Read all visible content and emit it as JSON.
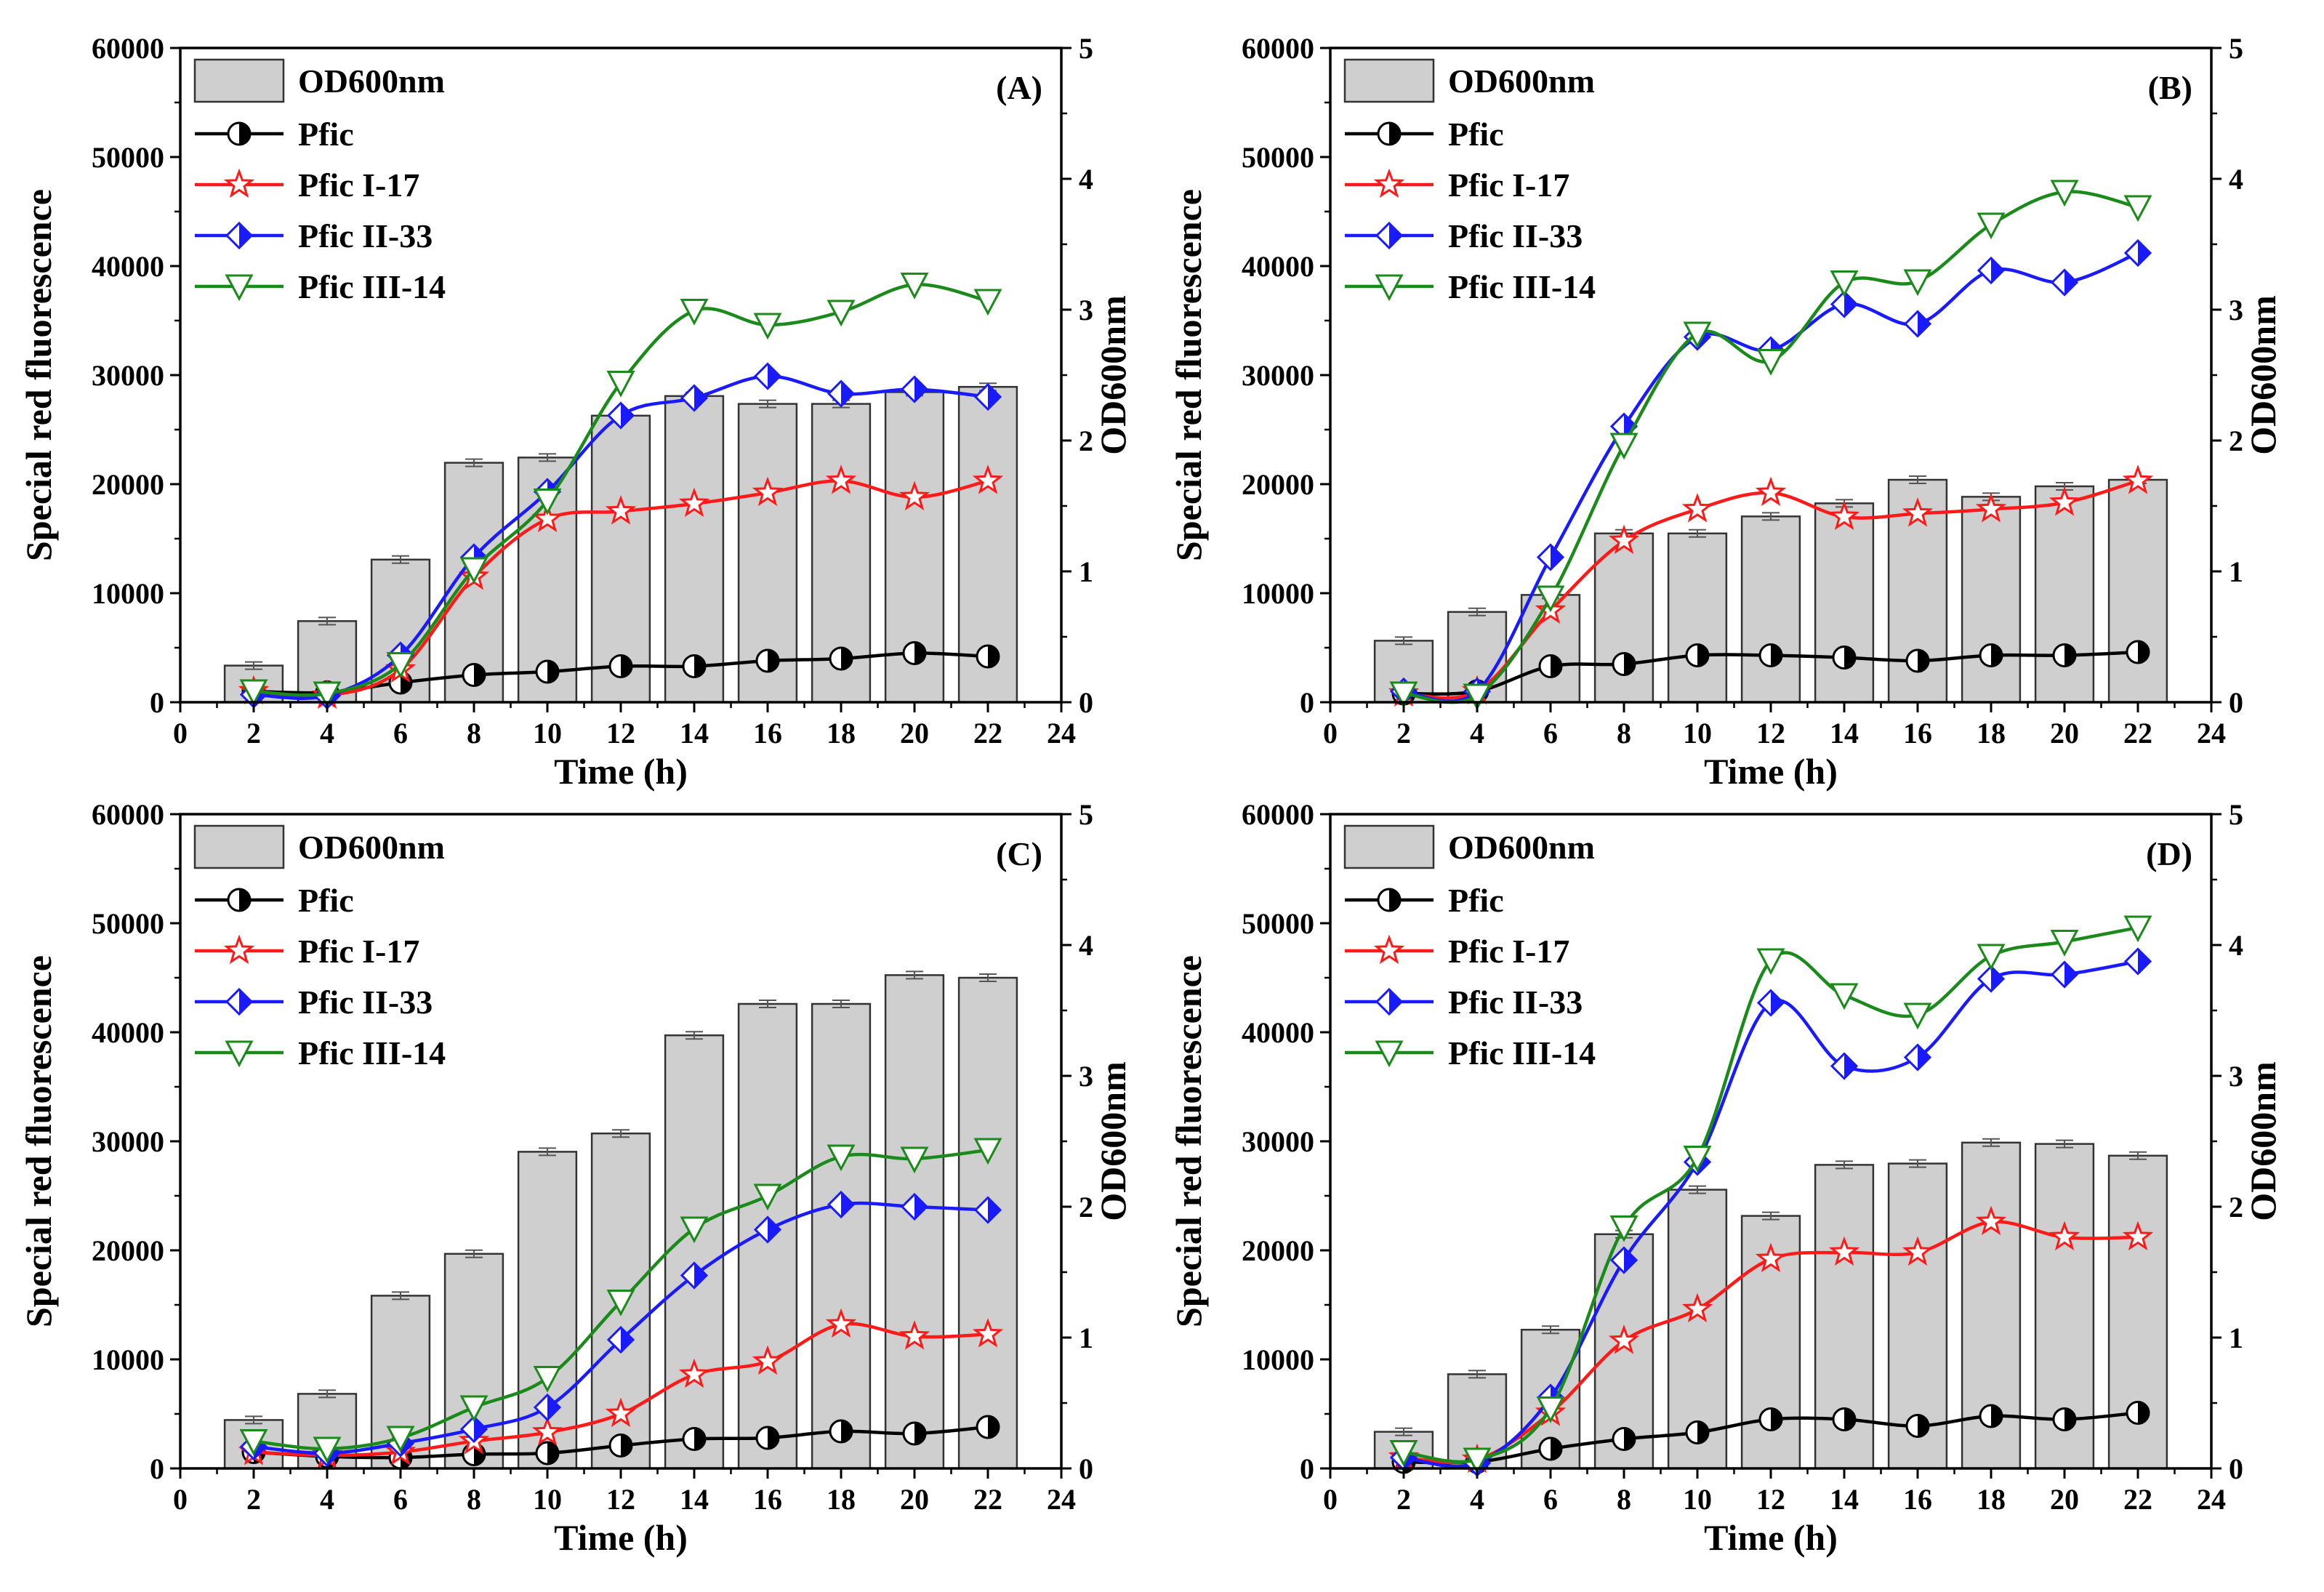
{
  "figure": {
    "legend": {
      "bar_label": "OD600nm",
      "entries": [
        {
          "key": "pfic",
          "label": "Pfic"
        },
        {
          "key": "pfic1",
          "label": "Pfic I-17"
        },
        {
          "key": "pfic2",
          "label": "Pfic II-33"
        },
        {
          "key": "pfic3",
          "label": "Pfic III-14"
        }
      ]
    },
    "colors": {
      "pfic": "#000000",
      "pfic1": "#ff1a1a",
      "pfic2": "#1a1aff",
      "pfic3": "#1a8a1a",
      "bar_fill": "#cfcfcf",
      "bar_edge": "#333333"
    }
  },
  "chart_data": [
    {
      "panel": "(A)",
      "type": "bar+line",
      "xlabel": "Time (h)",
      "ylabel_left": "Special red fluorescence",
      "ylabel_right": "OD600nm",
      "xlim": [
        0,
        24
      ],
      "xticks": [
        "0",
        "2",
        "4",
        "6",
        "8",
        "10",
        "12",
        "14",
        "16",
        "18",
        "20",
        "22",
        "24"
      ],
      "ylim_left": [
        0,
        60000
      ],
      "yticks_left": [
        "0",
        "10000",
        "20000",
        "30000",
        "40000",
        "50000",
        "60000"
      ],
      "ylim_right": [
        0,
        5
      ],
      "yticks_right": [
        "0",
        "1",
        "2",
        "3",
        "4",
        "5"
      ],
      "x": [
        2,
        4,
        6,
        8,
        10,
        12,
        14,
        16,
        18,
        20,
        22
      ],
      "bars": {
        "name": "OD600nm",
        "values": [
          0.28,
          0.62,
          1.09,
          1.83,
          1.87,
          2.19,
          2.34,
          2.28,
          2.28,
          2.37,
          2.41
        ]
      },
      "series": [
        {
          "name": "Pfic",
          "values": [
            1000,
            900,
            1800,
            2500,
            2800,
            3300,
            3300,
            3800,
            4000,
            4500,
            4200
          ]
        },
        {
          "name": "Pfic I-17",
          "values": [
            1000,
            600,
            3000,
            11500,
            16800,
            17500,
            18200,
            19200,
            20300,
            18800,
            20300
          ]
        },
        {
          "name": "Pfic II-33",
          "values": [
            700,
            600,
            4300,
            13300,
            19300,
            26300,
            27900,
            29900,
            28300,
            28700,
            28000
          ]
        },
        {
          "name": "Pfic III-14",
          "values": [
            1000,
            800,
            3500,
            12200,
            18500,
            29300,
            35900,
            34600,
            35800,
            38300,
            36800
          ]
        }
      ]
    },
    {
      "panel": "(B)",
      "type": "bar+line",
      "xlabel": "Time (h)",
      "ylabel_left": "Special red fluorescence",
      "ylabel_right": "OD600nm",
      "xlim": [
        0,
        24
      ],
      "xticks": [
        "0",
        "2",
        "4",
        "6",
        "8",
        "10",
        "12",
        "14",
        "16",
        "18",
        "20",
        "22",
        "24"
      ],
      "ylim_left": [
        0,
        60000
      ],
      "yticks_left": [
        "0",
        "10000",
        "20000",
        "30000",
        "40000",
        "50000",
        "60000"
      ],
      "ylim_right": [
        0,
        5
      ],
      "yticks_right": [
        "0",
        "1",
        "2",
        "3",
        "4",
        "5"
      ],
      "x": [
        2,
        4,
        6,
        8,
        10,
        12,
        14,
        16,
        18,
        20,
        22
      ],
      "bars": {
        "name": "OD600nm",
        "values": [
          0.47,
          0.69,
          0.82,
          1.29,
          1.29,
          1.42,
          1.52,
          1.7,
          1.57,
          1.65,
          1.7
        ]
      },
      "series": [
        {
          "name": "Pfic",
          "values": [
            800,
            1000,
            3300,
            3500,
            4300,
            4300,
            4100,
            3800,
            4300,
            4300,
            4600
          ]
        },
        {
          "name": "Pfic I-17",
          "values": [
            800,
            1000,
            8400,
            14800,
            17700,
            19200,
            17000,
            17300,
            17700,
            18300,
            20300
          ]
        },
        {
          "name": "Pfic II-33",
          "values": [
            1000,
            1000,
            13300,
            25300,
            33500,
            32300,
            36500,
            34700,
            39600,
            38500,
            41200
          ]
        },
        {
          "name": "Pfic III-14",
          "values": [
            800,
            600,
            9600,
            23600,
            33800,
            31300,
            38500,
            38600,
            43800,
            46800,
            45400
          ]
        }
      ]
    },
    {
      "panel": "(C)",
      "type": "bar+line",
      "xlabel": "Time (h)",
      "ylabel_left": "Special red fluorescence",
      "ylabel_right": "OD600nm",
      "xlim": [
        0,
        24
      ],
      "xticks": [
        "0",
        "2",
        "4",
        "6",
        "8",
        "10",
        "12",
        "14",
        "16",
        "18",
        "20",
        "22",
        "24"
      ],
      "ylim_left": [
        0,
        60000
      ],
      "yticks_left": [
        "0",
        "10000",
        "20000",
        "30000",
        "40000",
        "50000",
        "60000"
      ],
      "ylim_right": [
        0,
        5
      ],
      "yticks_right": [
        "0",
        "1",
        "2",
        "3",
        "4",
        "5"
      ],
      "x": [
        2,
        4,
        6,
        8,
        10,
        12,
        14,
        16,
        18,
        20,
        22
      ],
      "bars": {
        "name": "OD600nm",
        "values": [
          0.37,
          0.57,
          1.32,
          1.64,
          2.42,
          2.56,
          3.31,
          3.55,
          3.55,
          3.77,
          3.75
        ]
      },
      "series": [
        {
          "name": "Pfic",
          "values": [
            1500,
            1100,
            1000,
            1300,
            1400,
            2100,
            2700,
            2800,
            3400,
            3200,
            3800
          ]
        },
        {
          "name": "Pfic I-17",
          "values": [
            1500,
            1200,
            1500,
            2500,
            3300,
            5000,
            8600,
            9800,
            13200,
            12100,
            12300
          ]
        },
        {
          "name": "Pfic II-33",
          "values": [
            2000,
            1400,
            2300,
            3600,
            5600,
            11800,
            17700,
            21900,
            24200,
            24000,
            23700
          ]
        },
        {
          "name": "Pfic III-14",
          "values": [
            2500,
            1800,
            2800,
            5600,
            8300,
            15300,
            22000,
            25000,
            28600,
            28400,
            29200
          ]
        }
      ]
    },
    {
      "panel": "(D)",
      "type": "bar+line",
      "xlabel": "Time (h)",
      "ylabel_left": "Special red fluorescence",
      "ylabel_right": "OD600nm",
      "xlim": [
        0,
        24
      ],
      "xticks": [
        "0",
        "2",
        "4",
        "6",
        "8",
        "10",
        "12",
        "14",
        "16",
        "18",
        "20",
        "22",
        "24"
      ],
      "ylim_left": [
        0,
        60000
      ],
      "yticks_left": [
        "0",
        "10000",
        "20000",
        "30000",
        "40000",
        "50000",
        "60000"
      ],
      "ylim_right": [
        0,
        5
      ],
      "yticks_right": [
        "0",
        "1",
        "2",
        "3",
        "4",
        "5"
      ],
      "x": [
        2,
        4,
        6,
        8,
        10,
        12,
        14,
        16,
        18,
        20,
        22
      ],
      "bars": {
        "name": "OD600nm",
        "values": [
          0.28,
          0.72,
          1.06,
          1.79,
          2.13,
          1.93,
          2.32,
          2.33,
          2.49,
          2.48,
          2.39
        ]
      },
      "series": [
        {
          "name": "Pfic",
          "values": [
            600,
            600,
            1800,
            2700,
            3300,
            4500,
            4500,
            3900,
            4800,
            4500,
            5100
          ]
        },
        {
          "name": "Pfic I-17",
          "values": [
            1000,
            800,
            5100,
            11700,
            14600,
            19200,
            19800,
            19800,
            22600,
            21200,
            21200
          ]
        },
        {
          "name": "Pfic II-33",
          "values": [
            1000,
            500,
            6500,
            19100,
            28100,
            42700,
            36900,
            37700,
            44900,
            45300,
            46500
          ]
        },
        {
          "name": "Pfic III-14",
          "values": [
            1500,
            800,
            5500,
            22100,
            28500,
            46600,
            43400,
            41600,
            47000,
            48300,
            49600
          ]
        }
      ]
    }
  ]
}
